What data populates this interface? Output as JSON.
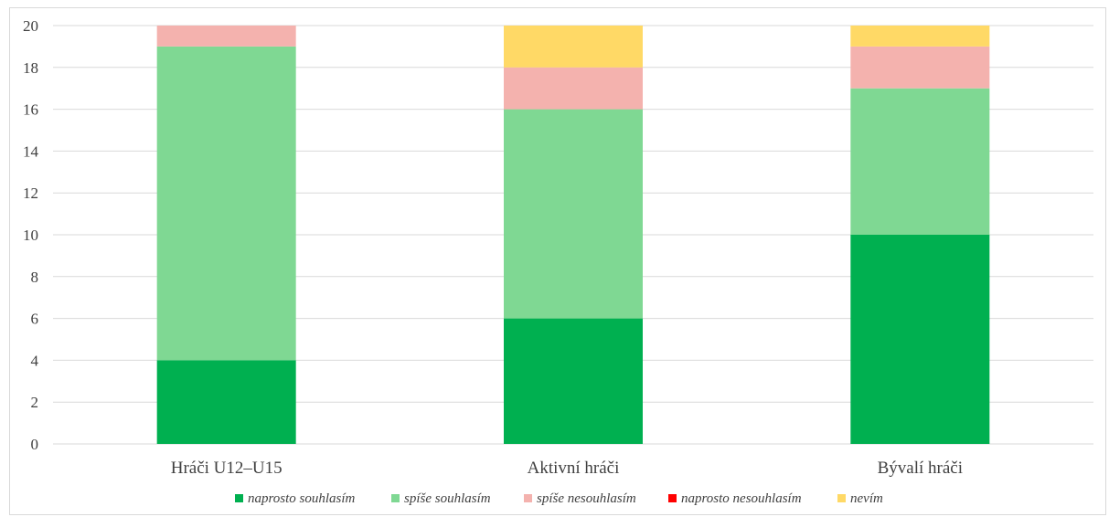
{
  "chart_data": {
    "type": "bar",
    "stacked": true,
    "title": "",
    "xlabel": "",
    "ylabel": "",
    "ylim": [
      0,
      20
    ],
    "yticks": [
      0,
      2,
      4,
      6,
      8,
      10,
      12,
      14,
      16,
      18,
      20
    ],
    "grid": true,
    "legend_position": "bottom",
    "categories": [
      "Hráči U12–U15",
      "Aktivní hráči",
      "Bývalí hráči"
    ],
    "series": [
      {
        "name": "naprosto souhlasím",
        "color": "#00b050",
        "values": [
          4,
          6,
          10
        ]
      },
      {
        "name": "spíše souhlasím",
        "color": "#7fd893",
        "values": [
          15,
          10,
          7
        ]
      },
      {
        "name": "spíše nesouhlasím",
        "color": "#f4b2ae",
        "values": [
          1,
          2,
          2
        ]
      },
      {
        "name": "naprosto nesouhlasím",
        "color": "#ff0000",
        "values": [
          0,
          0,
          0
        ]
      },
      {
        "name": "nevím",
        "color": "#ffd966",
        "values": [
          0,
          2,
          1
        ]
      }
    ]
  }
}
